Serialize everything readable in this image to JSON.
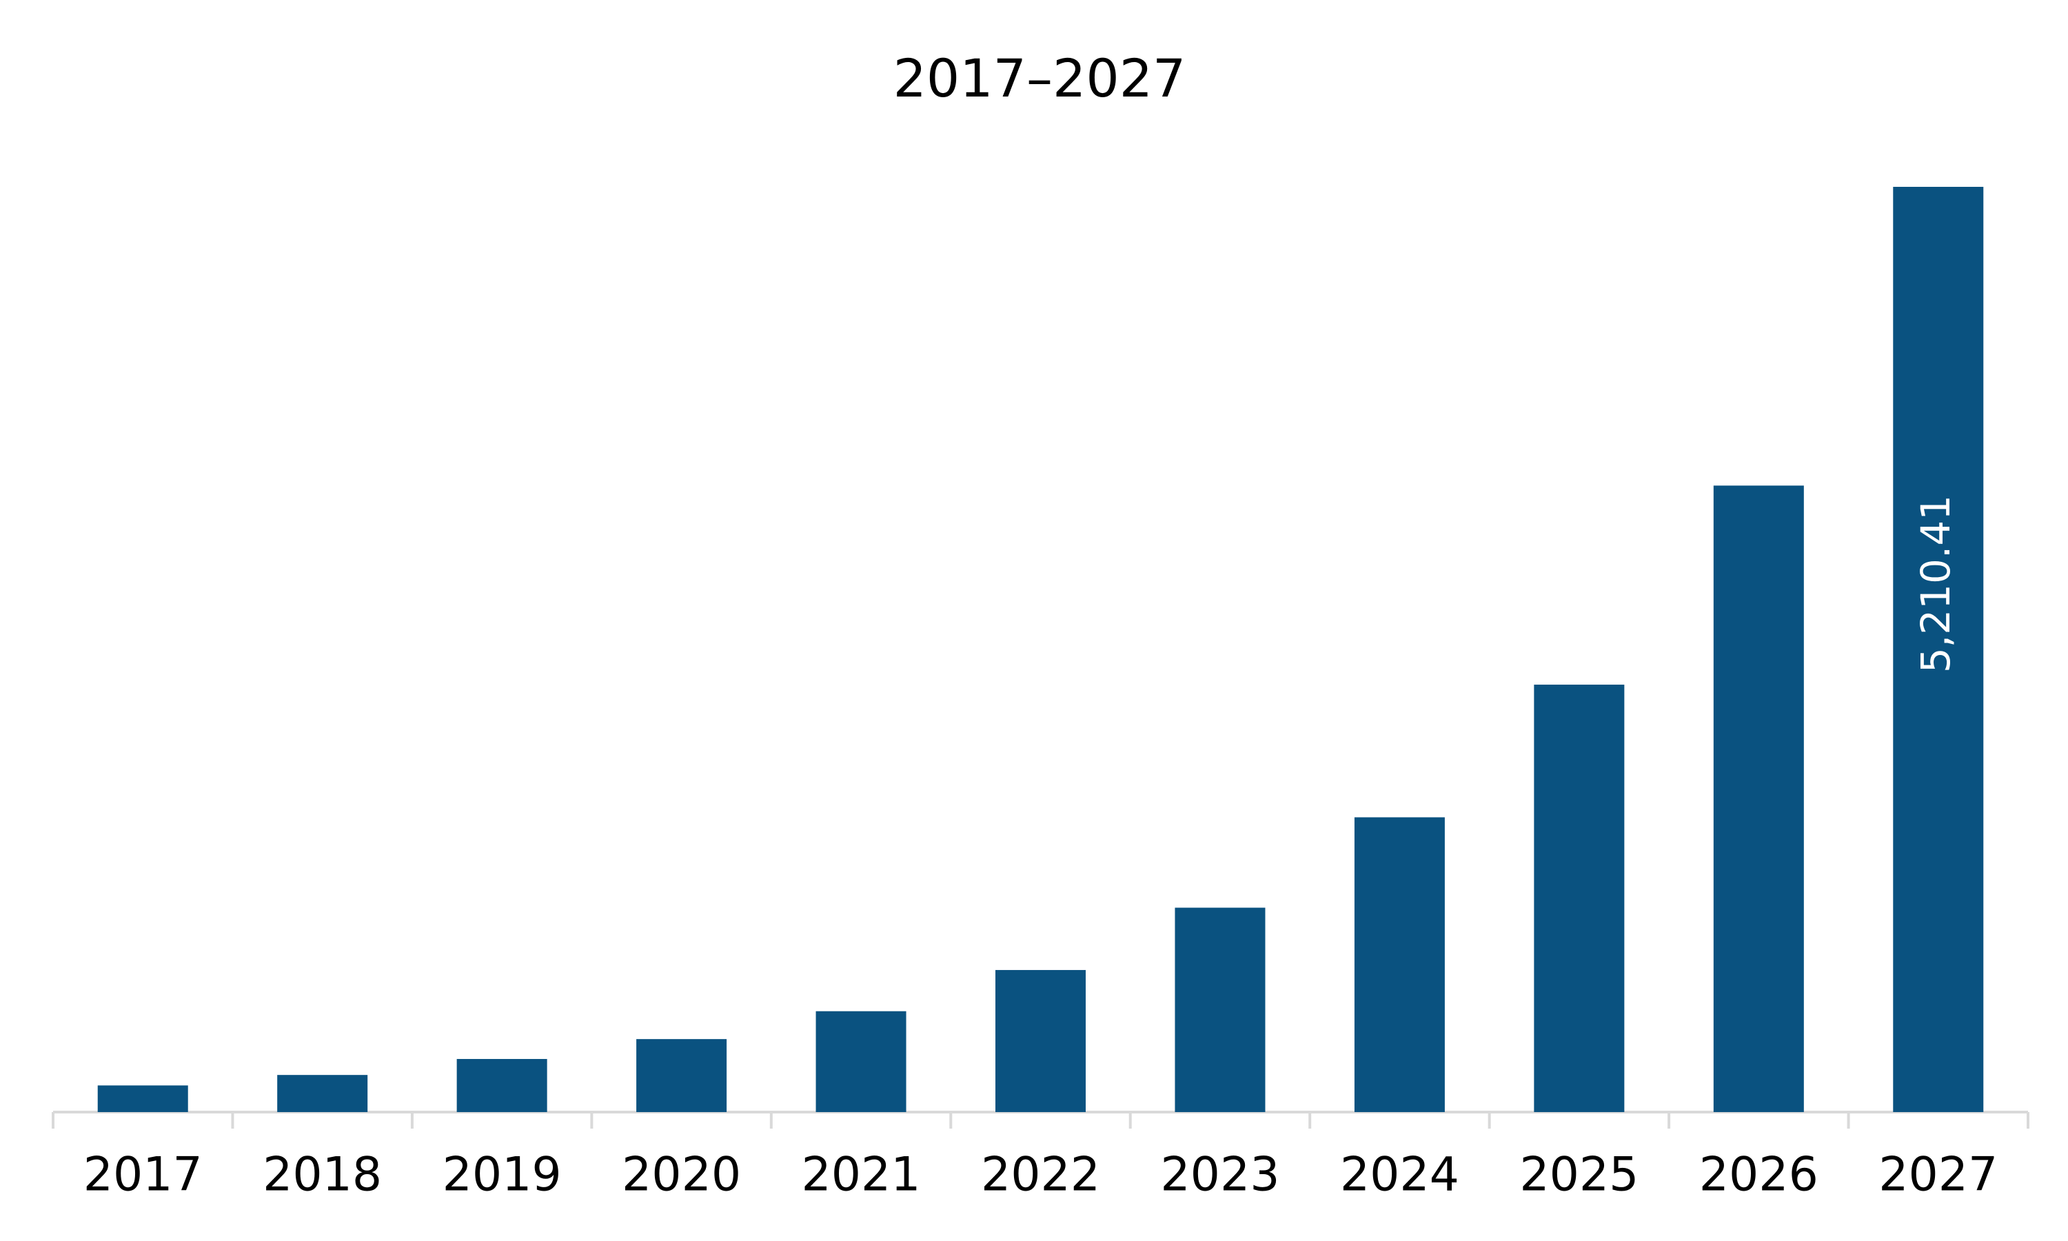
{
  "chart_data": {
    "type": "bar",
    "title": "2017–2027",
    "categories": [
      "2017",
      "2018",
      "2019",
      "2020",
      "2021",
      "2022",
      "2023",
      "2024",
      "2025",
      "2026",
      "2027"
    ],
    "values": [
      150,
      209,
      299,
      411,
      568,
      800,
      1151,
      1660,
      2407,
      3528,
      5210.41
    ],
    "value_labels": [
      null,
      null,
      null,
      null,
      null,
      null,
      null,
      null,
      null,
      null,
      "5,210.41"
    ],
    "color": "#0a5280"
  }
}
